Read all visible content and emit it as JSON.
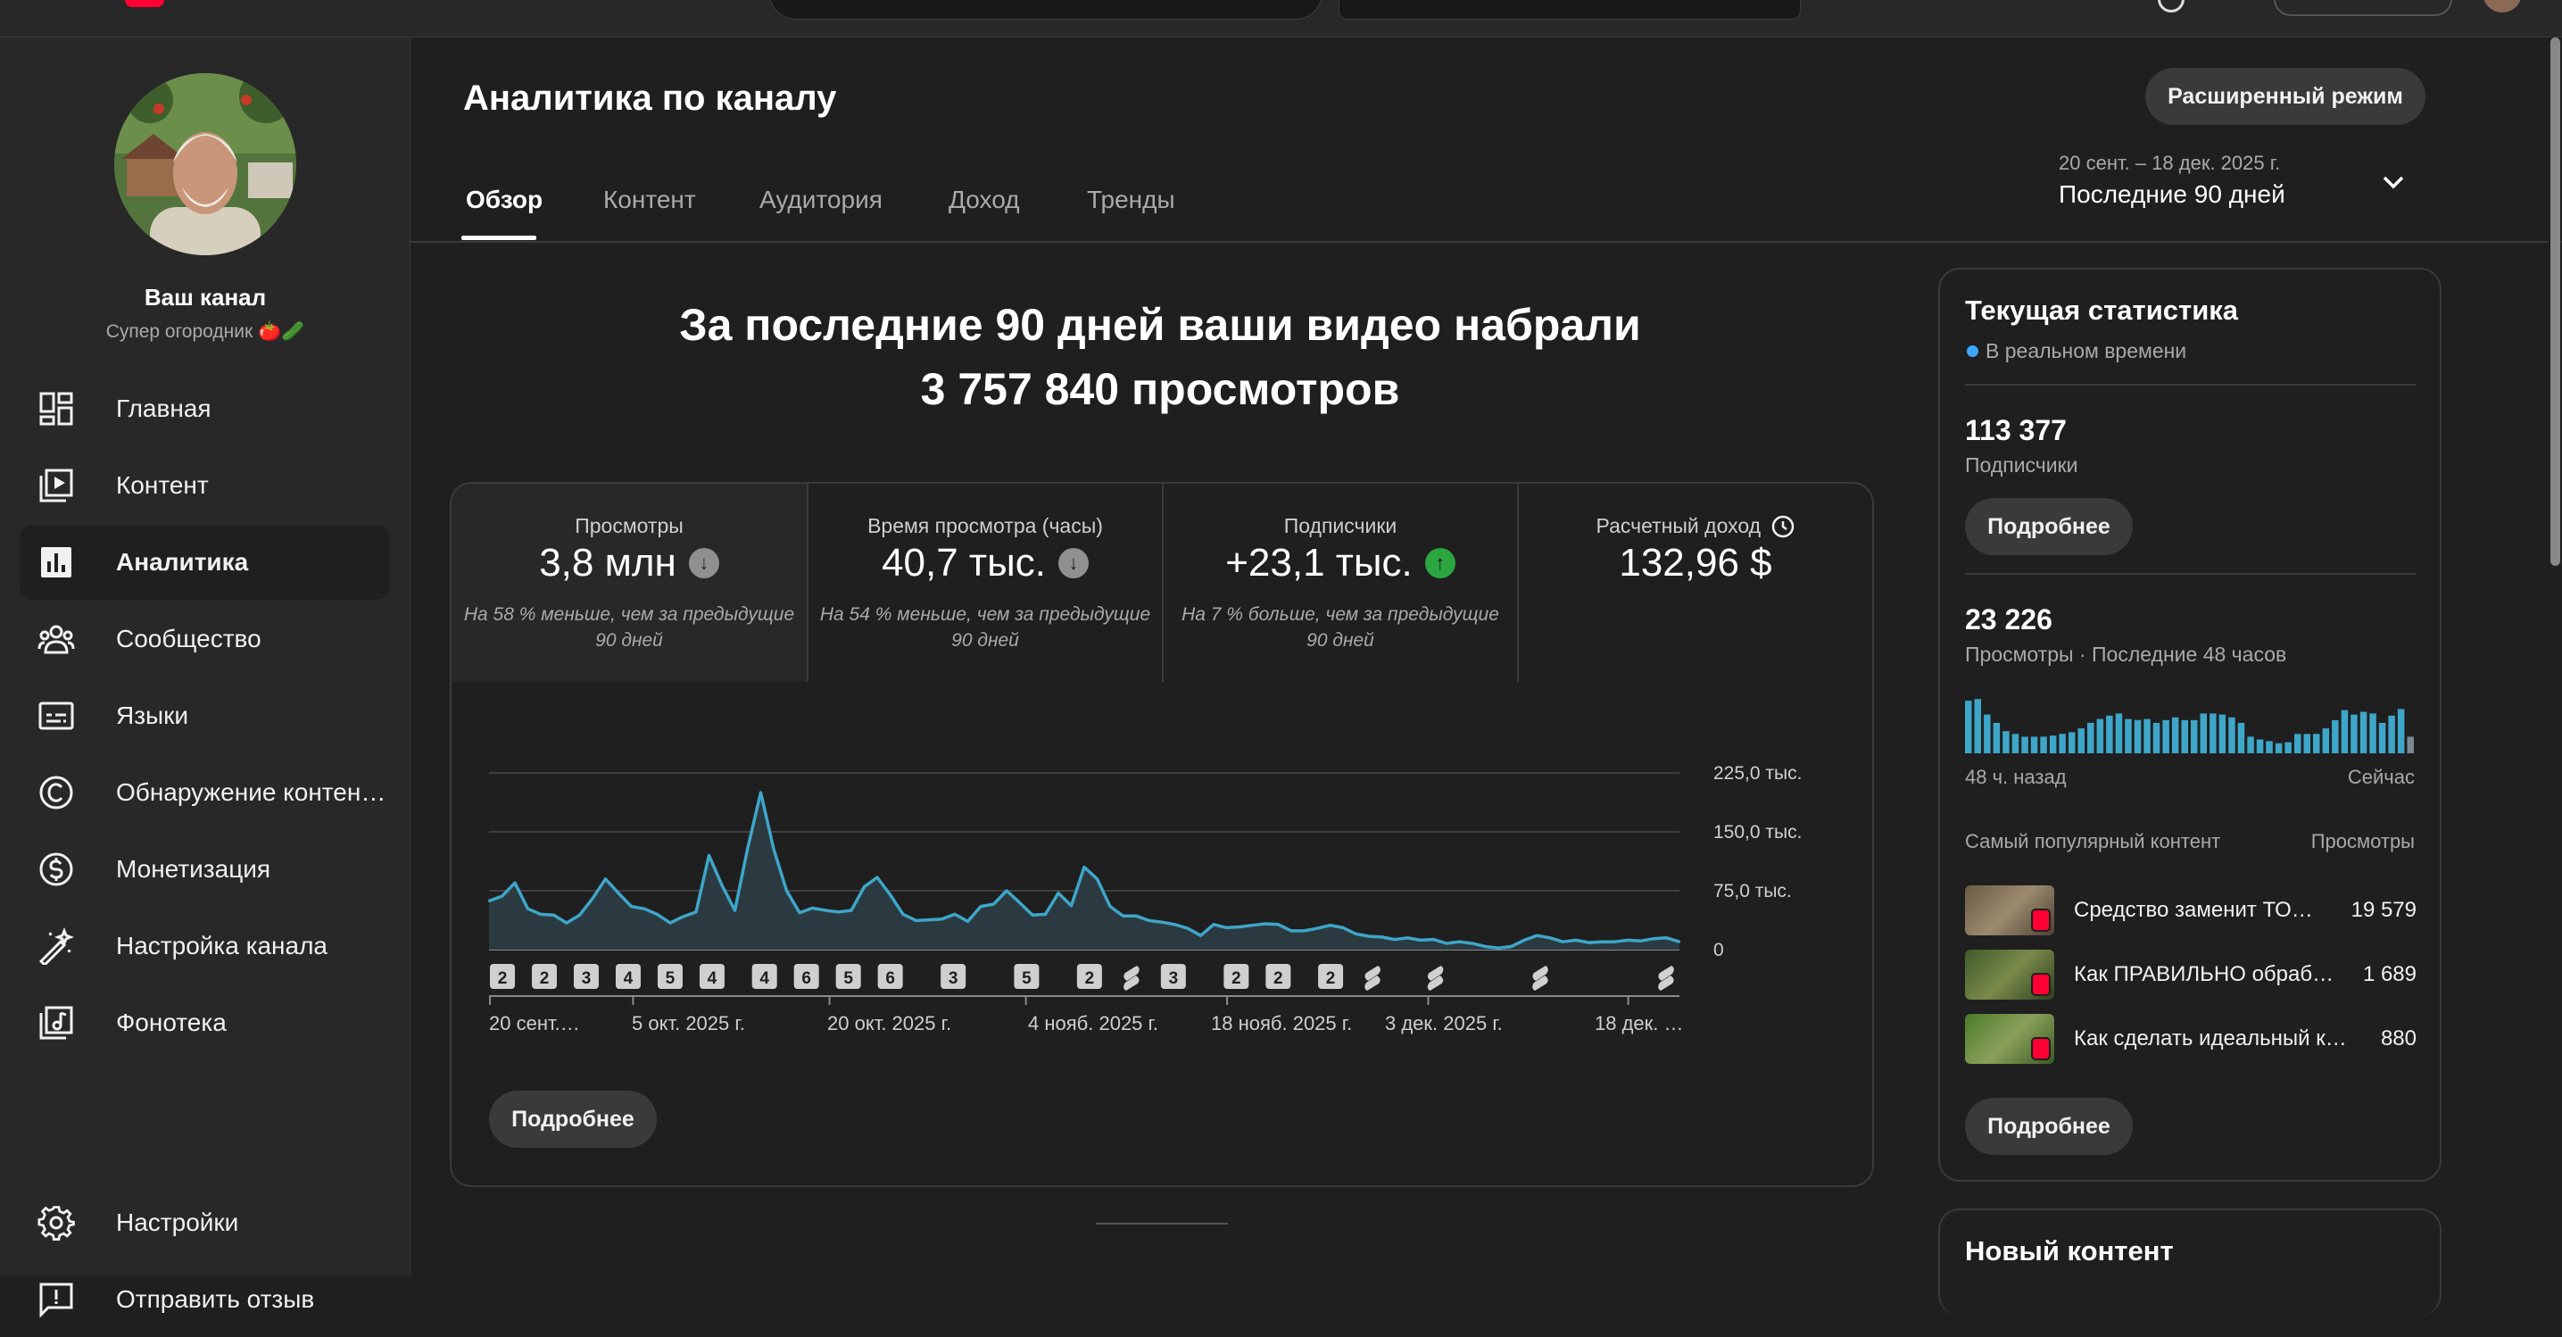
{
  "page": {
    "title": "Аналитика по каналу",
    "advanced_mode": "Расширенный режим",
    "tabs": [
      "Обзор",
      "Контент",
      "Аудитория",
      "Доход",
      "Тренды"
    ],
    "date_range": {
      "dates": "20 сент. – 18 дек. 2025 г.",
      "label": "Последние 90 дней"
    }
  },
  "sidebar": {
    "channel_name": "Ваш канал",
    "channel_handle": "Супер огородник 🍅🥒",
    "items": [
      {
        "label": "Главная",
        "icon": "dashboard-icon"
      },
      {
        "label": "Контент",
        "icon": "content-icon"
      },
      {
        "label": "Аналитика",
        "icon": "analytics-icon",
        "active": true
      },
      {
        "label": "Сообщество",
        "icon": "community-icon"
      },
      {
        "label": "Языки",
        "icon": "subtitles-icon"
      },
      {
        "label": "Обнаружение контен…",
        "icon": "copyright-icon"
      },
      {
        "label": "Монетизация",
        "icon": "monetization-icon"
      },
      {
        "label": "Настройка канала",
        "icon": "customization-icon"
      },
      {
        "label": "Фонотека",
        "icon": "audio-library-icon"
      }
    ],
    "bottom_items": [
      {
        "label": "Настройки",
        "icon": "settings-icon"
      },
      {
        "label": "Отправить отзыв",
        "icon": "feedback-icon"
      }
    ]
  },
  "overview": {
    "headline_line1": "За последние 90 дней ваши видео набрали",
    "headline_line2": "3 757 840 просмотров",
    "metrics": [
      {
        "label": "Просмотры",
        "value": "3,8 млн",
        "trend": "down",
        "note": "На 58 % меньше, чем за предыдущие 90 дней"
      },
      {
        "label": "Время просмотра (часы)",
        "value": "40,7 тыс.",
        "trend": "down",
        "note": "На 54 % меньше, чем за предыдущие 90 дней"
      },
      {
        "label": "Подписчики",
        "value": "+23,1 тыс.",
        "trend": "up",
        "note": "На 7 % больше, чем за предыдущие 90 дней"
      },
      {
        "label": "Расчетный доход",
        "value": "132,96 $",
        "trend": "clock",
        "note": ""
      }
    ],
    "more_button": "Подробнее"
  },
  "chart_data": {
    "type": "area",
    "y_ticks": [
      "225,0 тыс.",
      "150,0 тыс.",
      "75,0 тыс.",
      "0"
    ],
    "ylim": [
      0,
      225000
    ],
    "x_tick_labels": [
      "20 сент.…",
      "5 окт. 2025 г.",
      "20 окт. 2025 г.",
      "4 нояб. 2025 г.",
      "18 нояб. 2025 г.",
      "3 дек. 2025 г.",
      "18 дек. …"
    ],
    "upload_markers": [
      "2",
      "2",
      "3",
      "4",
      "5",
      "4",
      "4",
      "6",
      "5",
      "6",
      "3",
      "5",
      "2",
      "S",
      "3",
      "2",
      "2",
      "2",
      "S",
      "S",
      "S",
      "S"
    ],
    "color": "#3ea6c9",
    "series": [
      {
        "values": [
          62000,
          68000,
          85000,
          52000,
          45000,
          44000,
          34000,
          44000,
          65000,
          90000,
          72000,
          55000,
          52000,
          45000,
          34000,
          42000,
          48000,
          120000,
          82000,
          50000,
          130000,
          200000,
          128000,
          75000,
          47000,
          53000,
          50000,
          48000,
          50000,
          80000,
          92000,
          70000,
          45000,
          37000,
          38000,
          39000,
          45000,
          36000,
          55000,
          58000,
          75000,
          60000,
          44000,
          45000,
          72000,
          56000,
          105000,
          90000,
          55000,
          43000,
          43000,
          37000,
          35000,
          32000,
          27000,
          18000,
          32000,
          28000,
          29000,
          31000,
          33000,
          32000,
          24000,
          24000,
          27000,
          31000,
          28000,
          20000,
          17000,
          16000,
          13000,
          15000,
          12000,
          13000,
          8000,
          10000,
          8000,
          4000,
          2000,
          4000,
          12000,
          18000,
          15000,
          10000,
          12000,
          9000,
          10000,
          10000,
          12000,
          11000,
          14000,
          15000,
          10000
        ]
      }
    ]
  },
  "realtime": {
    "title": "Текущая статистика",
    "live": "В реальном времени",
    "subscribers_value": "113 377",
    "subscribers_label": "Подписчики",
    "views_value": "23 226",
    "views_label": "Просмотры · Последние 48 часов",
    "x_start": "48 ч. назад",
    "x_end": "Сейчас",
    "hourly_views": [
      0.95,
      0.98,
      0.7,
      0.55,
      0.4,
      0.35,
      0.3,
      0.3,
      0.3,
      0.32,
      0.35,
      0.38,
      0.45,
      0.55,
      0.62,
      0.68,
      0.72,
      0.62,
      0.6,
      0.62,
      0.55,
      0.6,
      0.65,
      0.6,
      0.6,
      0.72,
      0.72,
      0.7,
      0.65,
      0.55,
      0.3,
      0.25,
      0.22,
      0.18,
      0.2,
      0.35,
      0.35,
      0.35,
      0.45,
      0.6,
      0.78,
      0.7,
      0.75,
      0.72,
      0.55,
      0.68,
      0.8,
      0.3
    ],
    "popular_header": "Самый популярный контент",
    "popular_views_header": "Просмотры",
    "popular": [
      {
        "title": "Средство заменит ТО…",
        "views": "19 579"
      },
      {
        "title": "Как ПРАВИЛЬНО обраб…",
        "views": "1 689"
      },
      {
        "title": "Как сделать идеальный к…",
        "views": "880"
      }
    ],
    "more_button": "Подробнее"
  },
  "new_content": {
    "title": "Новый контент"
  }
}
